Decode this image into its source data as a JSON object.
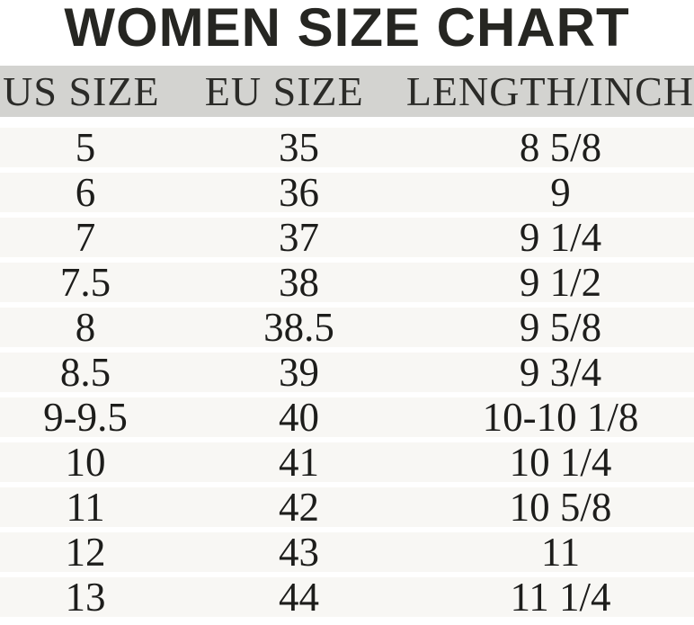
{
  "title": "WOMEN SIZE CHART",
  "chart_data": {
    "type": "table",
    "title": "WOMEN SIZE CHART",
    "headers": [
      "US SIZE",
      "EU SIZE",
      "LENGTH/INCH"
    ],
    "rows": [
      [
        "5",
        "35",
        "8 5/8"
      ],
      [
        "6",
        "36",
        "9"
      ],
      [
        "7",
        "37",
        "9 1/4"
      ],
      [
        "7.5",
        "38",
        "9 1/2"
      ],
      [
        "8",
        "38.5",
        "9 5/8"
      ],
      [
        "8.5",
        "39",
        "9 3/4"
      ],
      [
        "9-9.5",
        "40",
        "10-10 1/8"
      ],
      [
        "10",
        "41",
        "10 1/4"
      ],
      [
        "11",
        "42",
        "10 5/8"
      ],
      [
        "12",
        "43",
        "11"
      ],
      [
        "13",
        "44",
        "11 1/4"
      ]
    ]
  },
  "colors": {
    "header_background": "#d3d3d0",
    "row_background": "#f8f7f4",
    "separator": "#ffffff",
    "title_text": "#262622",
    "body_text": "#1d1d1b"
  }
}
